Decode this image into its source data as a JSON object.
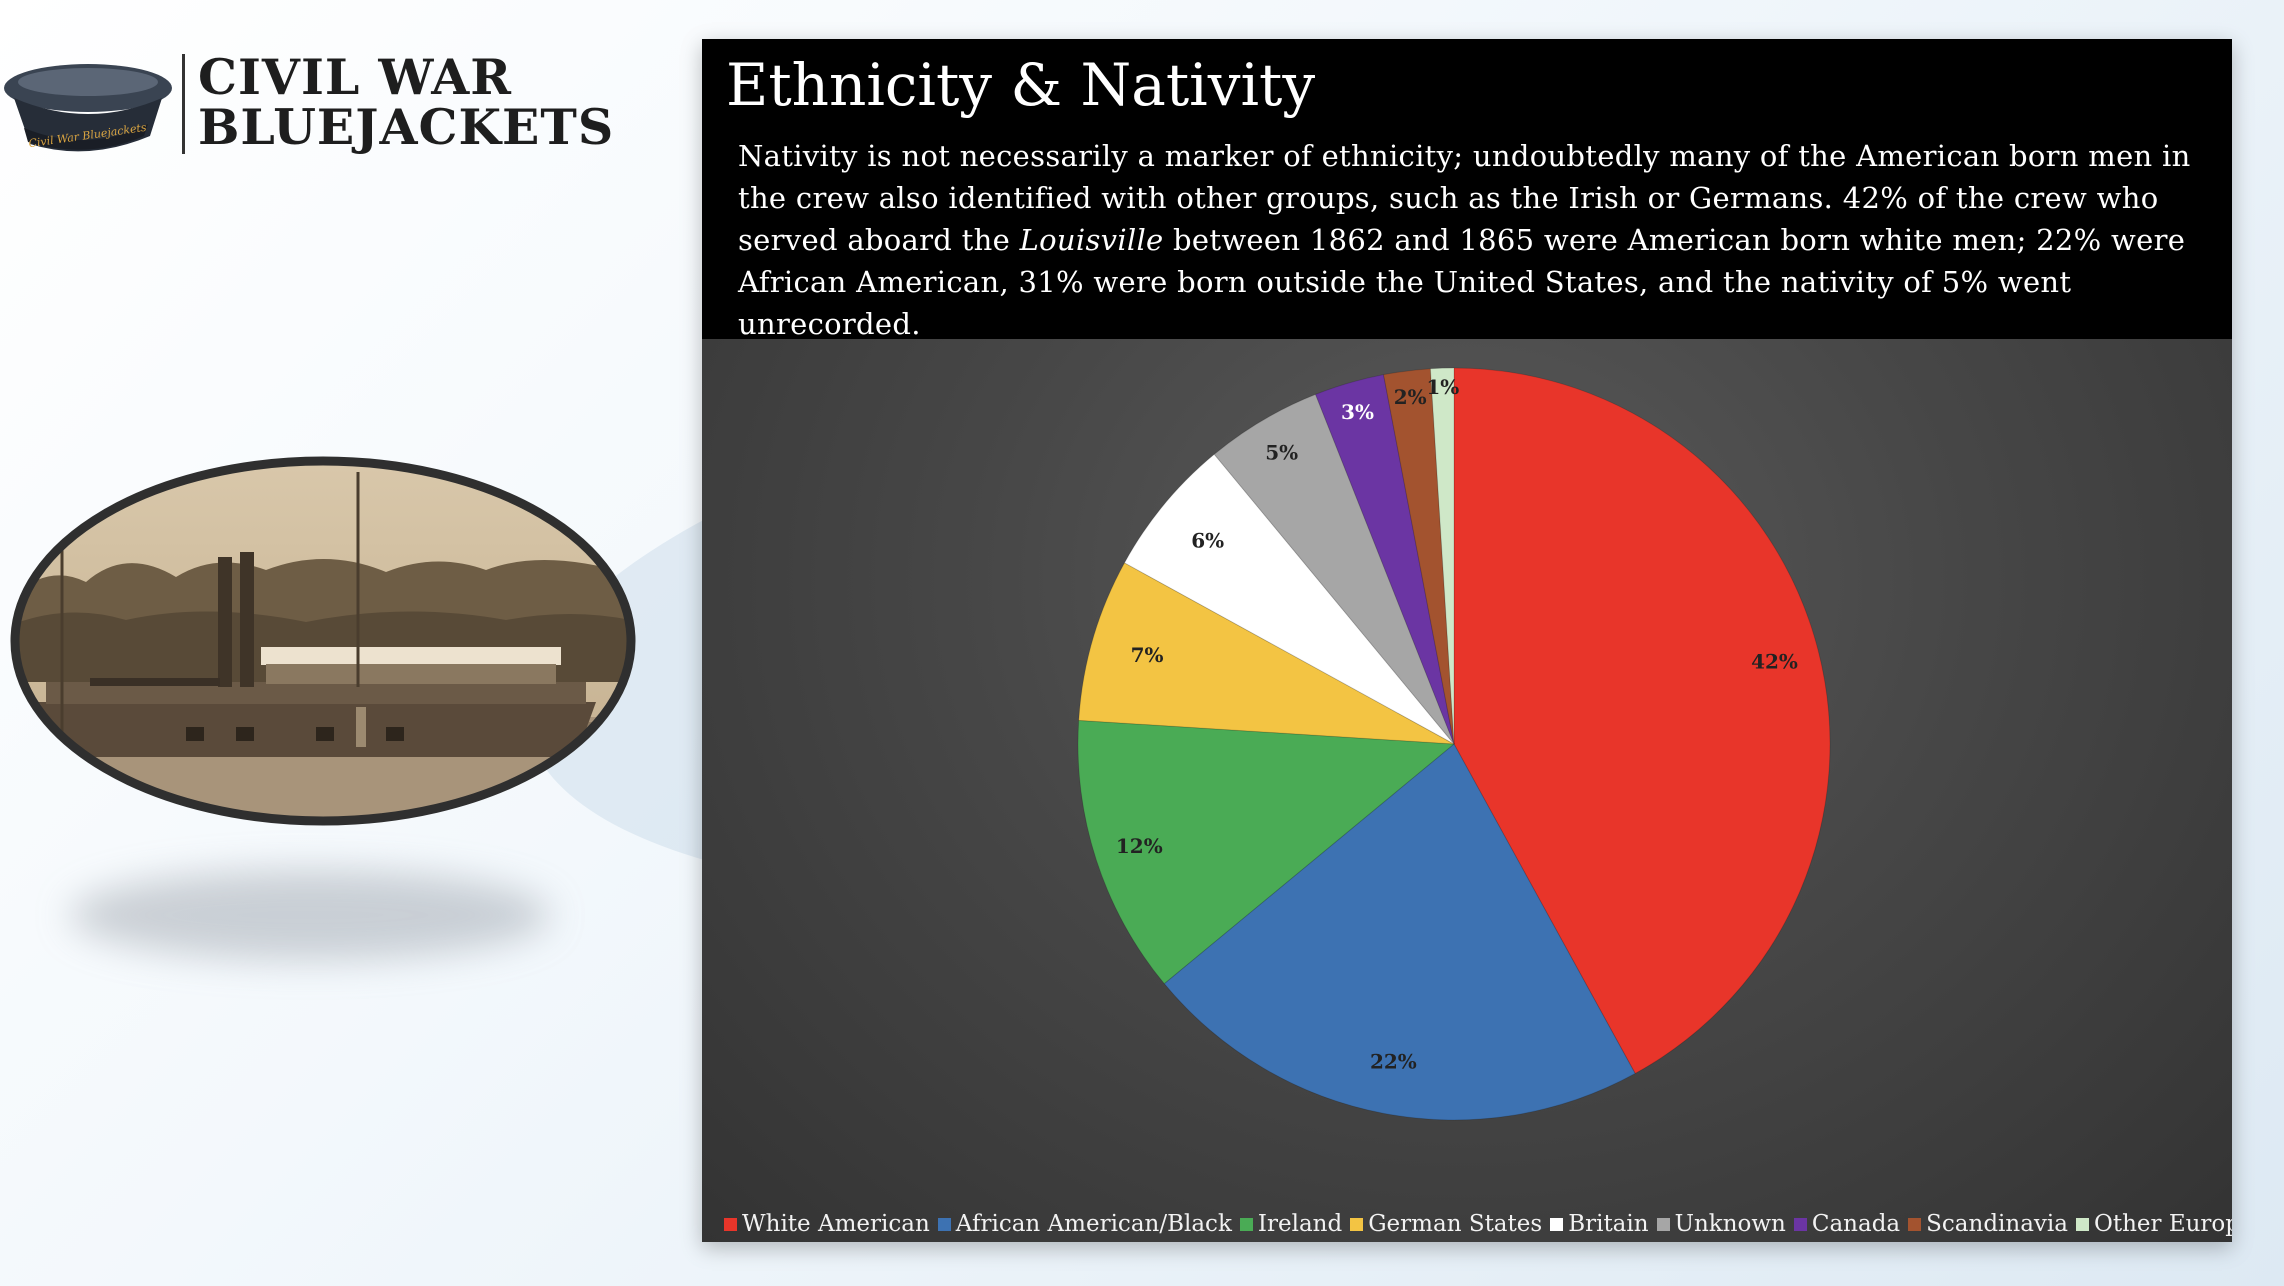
{
  "logo": {
    "line1": "CIVIL WAR",
    "line2": "BLUEJACKETS",
    "cap_band_text": "Civil War Bluejackets"
  },
  "slide": {
    "title": "Ethnicity & Nativity",
    "desc_before_ship": "Nativity is not necessarily a marker of ethnicity; undoubtedly many of the American born men in the crew also identified with other groups, such as the Irish or Germans. 42% of the crew who served aboard the ",
    "ship_name": "Louisville",
    "desc_after_ship": " between 1862 and 1865 were American born white men; 22% were African American, 31% were born outside the United States, and the nativity of 5% went unrecorded."
  },
  "chart_data": {
    "type": "pie",
    "categories": [
      "White American",
      "African American/Black",
      "Ireland",
      "German States",
      "Britain",
      "Unknown",
      "Canada",
      "Scandinavia",
      "Other Europe"
    ],
    "values": [
      42,
      22,
      12,
      7,
      6,
      5,
      3,
      2,
      1
    ],
    "labels": [
      "42%",
      "22%",
      "12%",
      "7%",
      "6%",
      "5%",
      "3%",
      "2%",
      "1%"
    ],
    "colors": [
      "#e8352a",
      "#3d72b2",
      "#4aab55",
      "#f3c443",
      "#ffffff",
      "#a6a6a6",
      "#6b35a3",
      "#a3532f",
      "#cfe8c8"
    ],
    "legend_position": "bottom"
  }
}
